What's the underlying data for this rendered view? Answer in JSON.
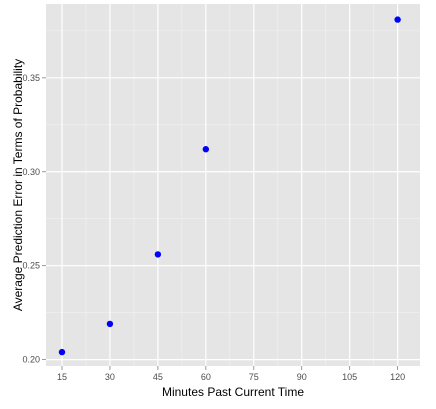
{
  "chart_data": {
    "type": "scatter",
    "title": "",
    "xlabel": "Minutes Past Current Time",
    "ylabel": "Average Prediction Error in Terms of Probability",
    "x_ticks": [
      "15",
      "30",
      "45",
      "60",
      "75",
      "90",
      "105",
      "120"
    ],
    "y_ticks": [
      "0.20",
      "0.25",
      "0.30",
      "0.35"
    ],
    "xlim": [
      10,
      127
    ],
    "ylim": [
      0.1966,
      0.3893
    ],
    "grid": true,
    "legend": "none",
    "points": [
      {
        "x": 15,
        "y": 0.204
      },
      {
        "x": 30,
        "y": 0.219
      },
      {
        "x": 45,
        "y": 0.256
      },
      {
        "x": 60,
        "y": 0.312
      },
      {
        "x": 120,
        "y": 0.381
      }
    ],
    "colors": {
      "panel": "#e5e5e5",
      "grid_major": "#ffffff",
      "grid_minor": "#f2f2f2",
      "point": "#0000ff",
      "tick": "#7f7f7f"
    }
  }
}
